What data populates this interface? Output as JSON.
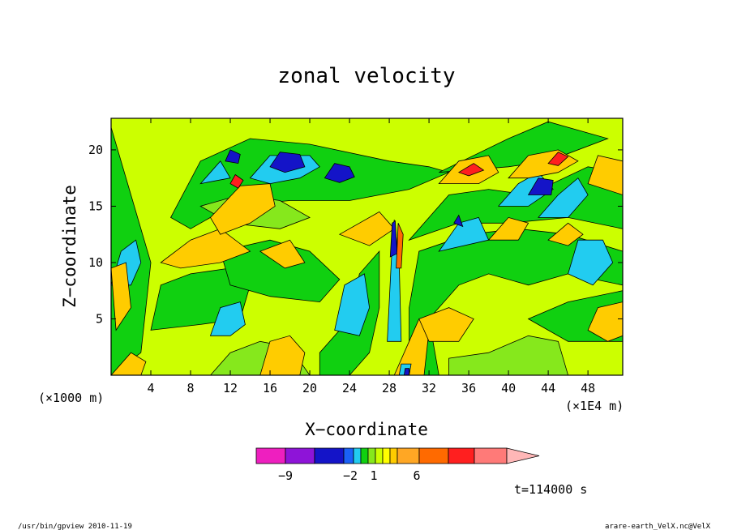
{
  "chart_data": {
    "type": "heatmap",
    "title": "zonal velocity",
    "xlabel": "X−coordinate",
    "ylabel": "Z−coordinate",
    "x_unit_left": "(×1000 m)",
    "x_unit_right": "(×1E4 m)",
    "xlim": [
      0,
      51.5
    ],
    "ylim": [
      0,
      22.8
    ],
    "x_ticks": [
      4,
      8,
      12,
      16,
      20,
      24,
      28,
      32,
      36,
      40,
      44,
      48
    ],
    "x_tick_labels": [
      "4",
      "8",
      "12",
      "16",
      "20",
      "24",
      "28",
      "32",
      "36",
      "40",
      "44",
      "48"
    ],
    "y_ticks": [
      5,
      10,
      15,
      20
    ],
    "y_tick_labels": [
      "5",
      "10",
      "15",
      "20"
    ],
    "background_color": "#ccff00",
    "regions": [
      {
        "level": 1,
        "points": [
          [
            0,
            0
          ],
          [
            3,
            2
          ],
          [
            4,
            10
          ],
          [
            2,
            16
          ],
          [
            0,
            22
          ]
        ]
      },
      {
        "level": 1,
        "points": [
          [
            4,
            4
          ],
          [
            9,
            4.5
          ],
          [
            13,
            5
          ],
          [
            14,
            8
          ],
          [
            12,
            9.5
          ],
          [
            8,
            9
          ],
          [
            5,
            8
          ]
        ]
      },
      {
        "level": 1,
        "points": [
          [
            6,
            14
          ],
          [
            9,
            19
          ],
          [
            14,
            21
          ],
          [
            20,
            20.5
          ],
          [
            28,
            19
          ],
          [
            32,
            18.5
          ],
          [
            34,
            18
          ],
          [
            30,
            16.5
          ],
          [
            24,
            15.5
          ],
          [
            18,
            15.5
          ],
          [
            12,
            15
          ],
          [
            8,
            13
          ]
        ]
      },
      {
        "level": 1,
        "points": [
          [
            11,
            11
          ],
          [
            16,
            12
          ],
          [
            20,
            11
          ],
          [
            23,
            8.5
          ],
          [
            21,
            6.5
          ],
          [
            16,
            7
          ],
          [
            12,
            8
          ]
        ]
      },
      {
        "level": 1,
        "points": [
          [
            21,
            2
          ],
          [
            24,
            5
          ],
          [
            25,
            9
          ],
          [
            27,
            11
          ],
          [
            27,
            6
          ],
          [
            26,
            2
          ],
          [
            24,
            0
          ],
          [
            21,
            0
          ]
        ]
      },
      {
        "level": 1,
        "points": [
          [
            30,
            0
          ],
          [
            30,
            6
          ],
          [
            31,
            11
          ],
          [
            36,
            12.5
          ],
          [
            41,
            13
          ],
          [
            46,
            12.5
          ],
          [
            51.5,
            11
          ],
          [
            51.5,
            8
          ],
          [
            46,
            9
          ],
          [
            42,
            8
          ],
          [
            38,
            9
          ],
          [
            35,
            8
          ],
          [
            32,
            5
          ],
          [
            33,
            0
          ]
        ]
      },
      {
        "level": 1,
        "points": [
          [
            30,
            12
          ],
          [
            34,
            16
          ],
          [
            38,
            16.5
          ],
          [
            42,
            16
          ],
          [
            48,
            18.5
          ],
          [
            51.5,
            18
          ],
          [
            51.5,
            13
          ],
          [
            46,
            14
          ],
          [
            40,
            13.5
          ],
          [
            35,
            13.5
          ]
        ]
      },
      {
        "level": 1,
        "points": [
          [
            33,
            18
          ],
          [
            40,
            21
          ],
          [
            44,
            22.5
          ],
          [
            50,
            21
          ],
          [
            44,
            19
          ],
          [
            40,
            18.5
          ]
        ]
      },
      {
        "level": 1,
        "points": [
          [
            42,
            5
          ],
          [
            46,
            6.5
          ],
          [
            51.5,
            7.5
          ],
          [
            51.5,
            3
          ],
          [
            46,
            3
          ]
        ]
      },
      {
        "level": 0,
        "points": [
          [
            10,
            0
          ],
          [
            12,
            2
          ],
          [
            15,
            3
          ],
          [
            18,
            2.5
          ],
          [
            20,
            0
          ]
        ]
      },
      {
        "level": 0,
        "points": [
          [
            34,
            1.5
          ],
          [
            38,
            2
          ],
          [
            42,
            3.5
          ],
          [
            45,
            3
          ],
          [
            46,
            0
          ],
          [
            34,
            0
          ]
        ]
      },
      {
        "level": 0,
        "points": [
          [
            9,
            15
          ],
          [
            13,
            16
          ],
          [
            17,
            15.5
          ],
          [
            20,
            14
          ],
          [
            17,
            13
          ],
          [
            12,
            13.5
          ]
        ]
      },
      {
        "level": -1,
        "points": [
          [
            0,
            8
          ],
          [
            1,
            11
          ],
          [
            2.5,
            12
          ],
          [
            3,
            10
          ],
          [
            2,
            8
          ]
        ]
      },
      {
        "level": -1,
        "points": [
          [
            10,
            3.5
          ],
          [
            11,
            6
          ],
          [
            13,
            6.5
          ],
          [
            13.5,
            4.5
          ],
          [
            12,
            3.5
          ]
        ]
      },
      {
        "level": -1,
        "points": [
          [
            14,
            17.5
          ],
          [
            16,
            19.5
          ],
          [
            20,
            19.5
          ],
          [
            21,
            18.5
          ],
          [
            19,
            17.5
          ],
          [
            16,
            17
          ]
        ]
      },
      {
        "level": -1,
        "points": [
          [
            9,
            17
          ],
          [
            11,
            19
          ],
          [
            12,
            17.5
          ]
        ]
      },
      {
        "level": -1,
        "points": [
          [
            22.5,
            4
          ],
          [
            23.5,
            8
          ],
          [
            25.5,
            9
          ],
          [
            26,
            6
          ],
          [
            25,
            3.5
          ]
        ]
      },
      {
        "level": -1,
        "points": [
          [
            33,
            11
          ],
          [
            35,
            13.5
          ],
          [
            37,
            14
          ],
          [
            38,
            12
          ]
        ]
      },
      {
        "level": -1,
        "points": [
          [
            46,
            9
          ],
          [
            47,
            12
          ],
          [
            49.5,
            12
          ],
          [
            50.5,
            10
          ],
          [
            48.5,
            8
          ]
        ]
      },
      {
        "level": -1,
        "points": [
          [
            39,
            15
          ],
          [
            41,
            17
          ],
          [
            43,
            18
          ],
          [
            44.5,
            16.5
          ],
          [
            42,
            15
          ]
        ]
      },
      {
        "level": -1,
        "points": [
          [
            43,
            14
          ],
          [
            45,
            16
          ],
          [
            47,
            17.5
          ],
          [
            48,
            16
          ],
          [
            46,
            14
          ]
        ]
      },
      {
        "level": -3,
        "points": [
          [
            16,
            18.5
          ],
          [
            17,
            19.8
          ],
          [
            19,
            19.6
          ],
          [
            19.5,
            18.5
          ],
          [
            17.5,
            18
          ]
        ]
      },
      {
        "level": -3,
        "points": [
          [
            21.5,
            17.5
          ],
          [
            22.5,
            18.8
          ],
          [
            24,
            18.5
          ],
          [
            24.5,
            17.6
          ],
          [
            23,
            17.1
          ]
        ]
      },
      {
        "level": -3,
        "points": [
          [
            11.5,
            19
          ],
          [
            12,
            20
          ],
          [
            13,
            19.6
          ],
          [
            12.8,
            18.8
          ]
        ]
      },
      {
        "level": -3,
        "points": [
          [
            42,
            16
          ],
          [
            43,
            17.5
          ],
          [
            44.5,
            17.3
          ],
          [
            44.3,
            16
          ]
        ]
      },
      {
        "level": -3,
        "points": [
          [
            34.5,
            13.5
          ],
          [
            35,
            14.2
          ],
          [
            35.4,
            13.2
          ]
        ]
      },
      {
        "level": 2,
        "points": [
          [
            0,
            9.5
          ],
          [
            1.5,
            10
          ],
          [
            2,
            6
          ],
          [
            0.5,
            4
          ]
        ]
      },
      {
        "level": 2,
        "points": [
          [
            5,
            10
          ],
          [
            8,
            12
          ],
          [
            11,
            13
          ],
          [
            14,
            11
          ],
          [
            11,
            10
          ],
          [
            7,
            9.5
          ]
        ]
      },
      {
        "level": 2,
        "points": [
          [
            10,
            14
          ],
          [
            13,
            16.8
          ],
          [
            16,
            17
          ],
          [
            16.5,
            15
          ],
          [
            14,
            13.5
          ],
          [
            11,
            12.5
          ]
        ]
      },
      {
        "level": 2,
        "points": [
          [
            15,
            11
          ],
          [
            18,
            12
          ],
          [
            19.5,
            10
          ],
          [
            17.5,
            9.5
          ]
        ]
      },
      {
        "level": 2,
        "points": [
          [
            23,
            12.5
          ],
          [
            27,
            14.5
          ],
          [
            28.5,
            13
          ],
          [
            26,
            11.5
          ]
        ]
      },
      {
        "level": 2,
        "points": [
          [
            15,
            0
          ],
          [
            16,
            3
          ],
          [
            18,
            3.5
          ],
          [
            19.5,
            2
          ],
          [
            19,
            0
          ]
        ]
      },
      {
        "level": 2,
        "points": [
          [
            28.5,
            0
          ],
          [
            30,
            3
          ],
          [
            31,
            5
          ],
          [
            32,
            4
          ],
          [
            31.5,
            0
          ]
        ]
      },
      {
        "level": 2,
        "points": [
          [
            31,
            5
          ],
          [
            34,
            6
          ],
          [
            36.5,
            5
          ],
          [
            35,
            3
          ],
          [
            32,
            3
          ]
        ]
      },
      {
        "level": 2,
        "points": [
          [
            33,
            17
          ],
          [
            35,
            19
          ],
          [
            38,
            19.5
          ],
          [
            39,
            18
          ],
          [
            37,
            17
          ]
        ]
      },
      {
        "level": 2,
        "points": [
          [
            40,
            17.5
          ],
          [
            42,
            19.5
          ],
          [
            45,
            20
          ],
          [
            47,
            19
          ],
          [
            45,
            18
          ],
          [
            42,
            17.5
          ]
        ]
      },
      {
        "level": 2,
        "points": [
          [
            38,
            12
          ],
          [
            40,
            14
          ],
          [
            42,
            13.5
          ],
          [
            41,
            12
          ]
        ]
      },
      {
        "level": 2,
        "points": [
          [
            44,
            12
          ],
          [
            46,
            13.5
          ],
          [
            47.5,
            12.5
          ],
          [
            46,
            11.5
          ]
        ]
      },
      {
        "level": 2,
        "points": [
          [
            48,
            4
          ],
          [
            49,
            6
          ],
          [
            51.5,
            6.5
          ],
          [
            51.5,
            3.5
          ],
          [
            50,
            3
          ]
        ]
      },
      {
        "level": 2,
        "points": [
          [
            0,
            0
          ],
          [
            2,
            2
          ],
          [
            3.5,
            1.2
          ],
          [
            3,
            0
          ]
        ]
      },
      {
        "level": 2,
        "points": [
          [
            48,
            17
          ],
          [
            49,
            19.5
          ],
          [
            51.5,
            19
          ],
          [
            51.5,
            16
          ]
        ]
      },
      {
        "level": 4,
        "points": [
          [
            12,
            17
          ],
          [
            12.5,
            17.8
          ],
          [
            13.3,
            17.3
          ],
          [
            12.8,
            16.6
          ]
        ]
      },
      {
        "level": 4,
        "points": [
          [
            35,
            18
          ],
          [
            36.5,
            18.8
          ],
          [
            37.5,
            18.2
          ],
          [
            36,
            17.7
          ]
        ]
      },
      {
        "level": 4,
        "points": [
          [
            44,
            18.8
          ],
          [
            45,
            19.8
          ],
          [
            46,
            19.4
          ],
          [
            45,
            18.6
          ]
        ]
      },
      {
        "level": -1,
        "points": [
          [
            27.8,
            3
          ],
          [
            28.2,
            10
          ],
          [
            28.5,
            13.8
          ],
          [
            29,
            10
          ],
          [
            29.2,
            3
          ]
        ]
      },
      {
        "level": -3,
        "points": [
          [
            28.1,
            10.5
          ],
          [
            28.3,
            13.5
          ],
          [
            28.6,
            13.7
          ],
          [
            28.8,
            10.8
          ]
        ]
      },
      {
        "level": -1,
        "points": [
          [
            29,
            0
          ],
          [
            29.2,
            1
          ],
          [
            30.2,
            1
          ],
          [
            30,
            0
          ]
        ]
      },
      {
        "level": -3,
        "points": [
          [
            29.5,
            0
          ],
          [
            29.6,
            0.6
          ],
          [
            30,
            0.6
          ],
          [
            30,
            0
          ]
        ]
      },
      {
        "level": 3,
        "points": [
          [
            28.7,
            9.5
          ],
          [
            28.9,
            13.5
          ],
          [
            29.4,
            12.5
          ],
          [
            29.2,
            9.5
          ]
        ]
      }
    ],
    "legend": {
      "levels": [
        {
          "color": "#ee1fbf"
        },
        {
          "color": "#8e14d8"
        },
        {
          "color": "#1414c8"
        },
        {
          "color": "#1a62f7"
        },
        {
          "color": "#22ccf0"
        },
        {
          "color": "#10d010"
        },
        {
          "color": "#86e81c"
        },
        {
          "color": "#ccff00"
        },
        {
          "color": "#ffff00"
        },
        {
          "color": "#ffcc00"
        },
        {
          "color": "#ffa724"
        },
        {
          "color": "#ff6a00"
        },
        {
          "color": "#ff1f1f"
        },
        {
          "color": "#ff7a78"
        },
        {
          "color": "#ffb7b7"
        }
      ],
      "labels": [
        "−9",
        "−2",
        "1",
        "6"
      ]
    },
    "level_colors": {
      "-3": "#1414c8",
      "-1": "#22ccf0",
      "0": "#86e81c",
      "1": "#10d010",
      "2": "#ffcc00",
      "3": "#ff6a00",
      "4": "#ff1f1f"
    }
  },
  "time_label": "t=114000 s",
  "footer": {
    "left": "/usr/bin/gpview  2010-11-19",
    "right": "arare-earth_VelX.nc@VelX"
  }
}
